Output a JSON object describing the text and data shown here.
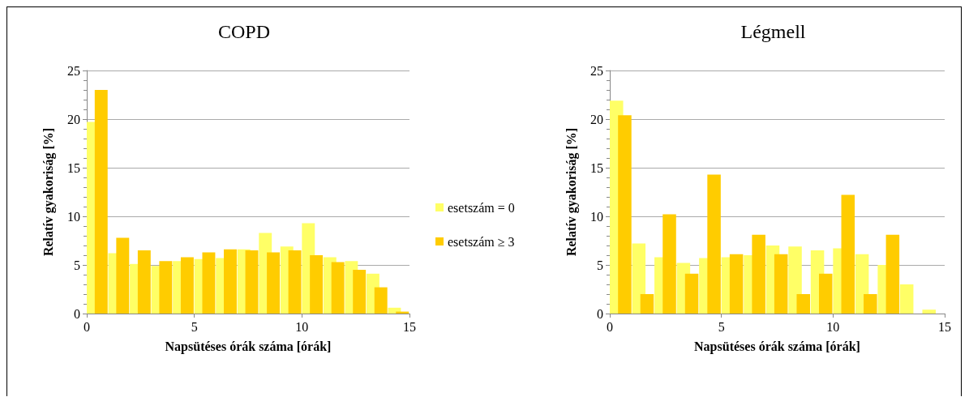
{
  "chart_data": [
    {
      "type": "histogram",
      "title": "COPD",
      "xlabel": "Napsütéses órák száma [órák]",
      "ylabel": "Relatív gyakoriság [%]",
      "bins": [
        0,
        1,
        2,
        3,
        4,
        5,
        6,
        7,
        8,
        9,
        10,
        11,
        12,
        13,
        14,
        15
      ],
      "series": [
        {
          "name": "esetszám = 0",
          "color": "#ffff66",
          "values": [
            19.7,
            6.2,
            5.1,
            4.9,
            5.4,
            5.6,
            5.7,
            6.6,
            8.3,
            6.9,
            9.3,
            5.8,
            5.4,
            4.1,
            0.6
          ]
        },
        {
          "name": "esetszám ≥ 3",
          "color": "#ffcc00",
          "values": [
            23.0,
            7.8,
            6.5,
            5.4,
            5.8,
            6.3,
            6.6,
            6.5,
            6.3,
            6.5,
            6.0,
            5.3,
            4.5,
            2.7,
            0.2
          ]
        }
      ],
      "xlim": [
        0,
        15
      ],
      "xticks": [
        0,
        5,
        10,
        15
      ],
      "ylim": [
        0,
        25
      ],
      "yticks": [
        0,
        5,
        10,
        15,
        20,
        25
      ],
      "grid": "y",
      "legend": "right"
    },
    {
      "type": "histogram",
      "title": "Légmell",
      "xlabel": "Napsütéses órák száma [órák]",
      "ylabel": "Relatív gyakoriság [%]",
      "bins": [
        0,
        1,
        2,
        3,
        4,
        5,
        6,
        7,
        8,
        9,
        10,
        11,
        12,
        13,
        14,
        15
      ],
      "series": [
        {
          "color": "#ffff66",
          "values": [
            21.9,
            7.2,
            5.8,
            5.2,
            5.7,
            5.8,
            6.0,
            7.0,
            6.9,
            6.5,
            6.7,
            6.1,
            5.0,
            3.0,
            0.4
          ]
        },
        {
          "color": "#ffcc00",
          "values": [
            20.4,
            2.0,
            10.2,
            4.1,
            14.3,
            6.1,
            8.1,
            6.1,
            2.0,
            4.1,
            12.2,
            2.0,
            8.1,
            0,
            0
          ]
        }
      ],
      "xlim": [
        0,
        15
      ],
      "xticks": [
        0,
        5,
        10,
        15
      ],
      "ylim": [
        0,
        25
      ],
      "yticks": [
        0,
        5,
        10,
        15,
        20,
        25
      ],
      "grid": "y"
    }
  ]
}
